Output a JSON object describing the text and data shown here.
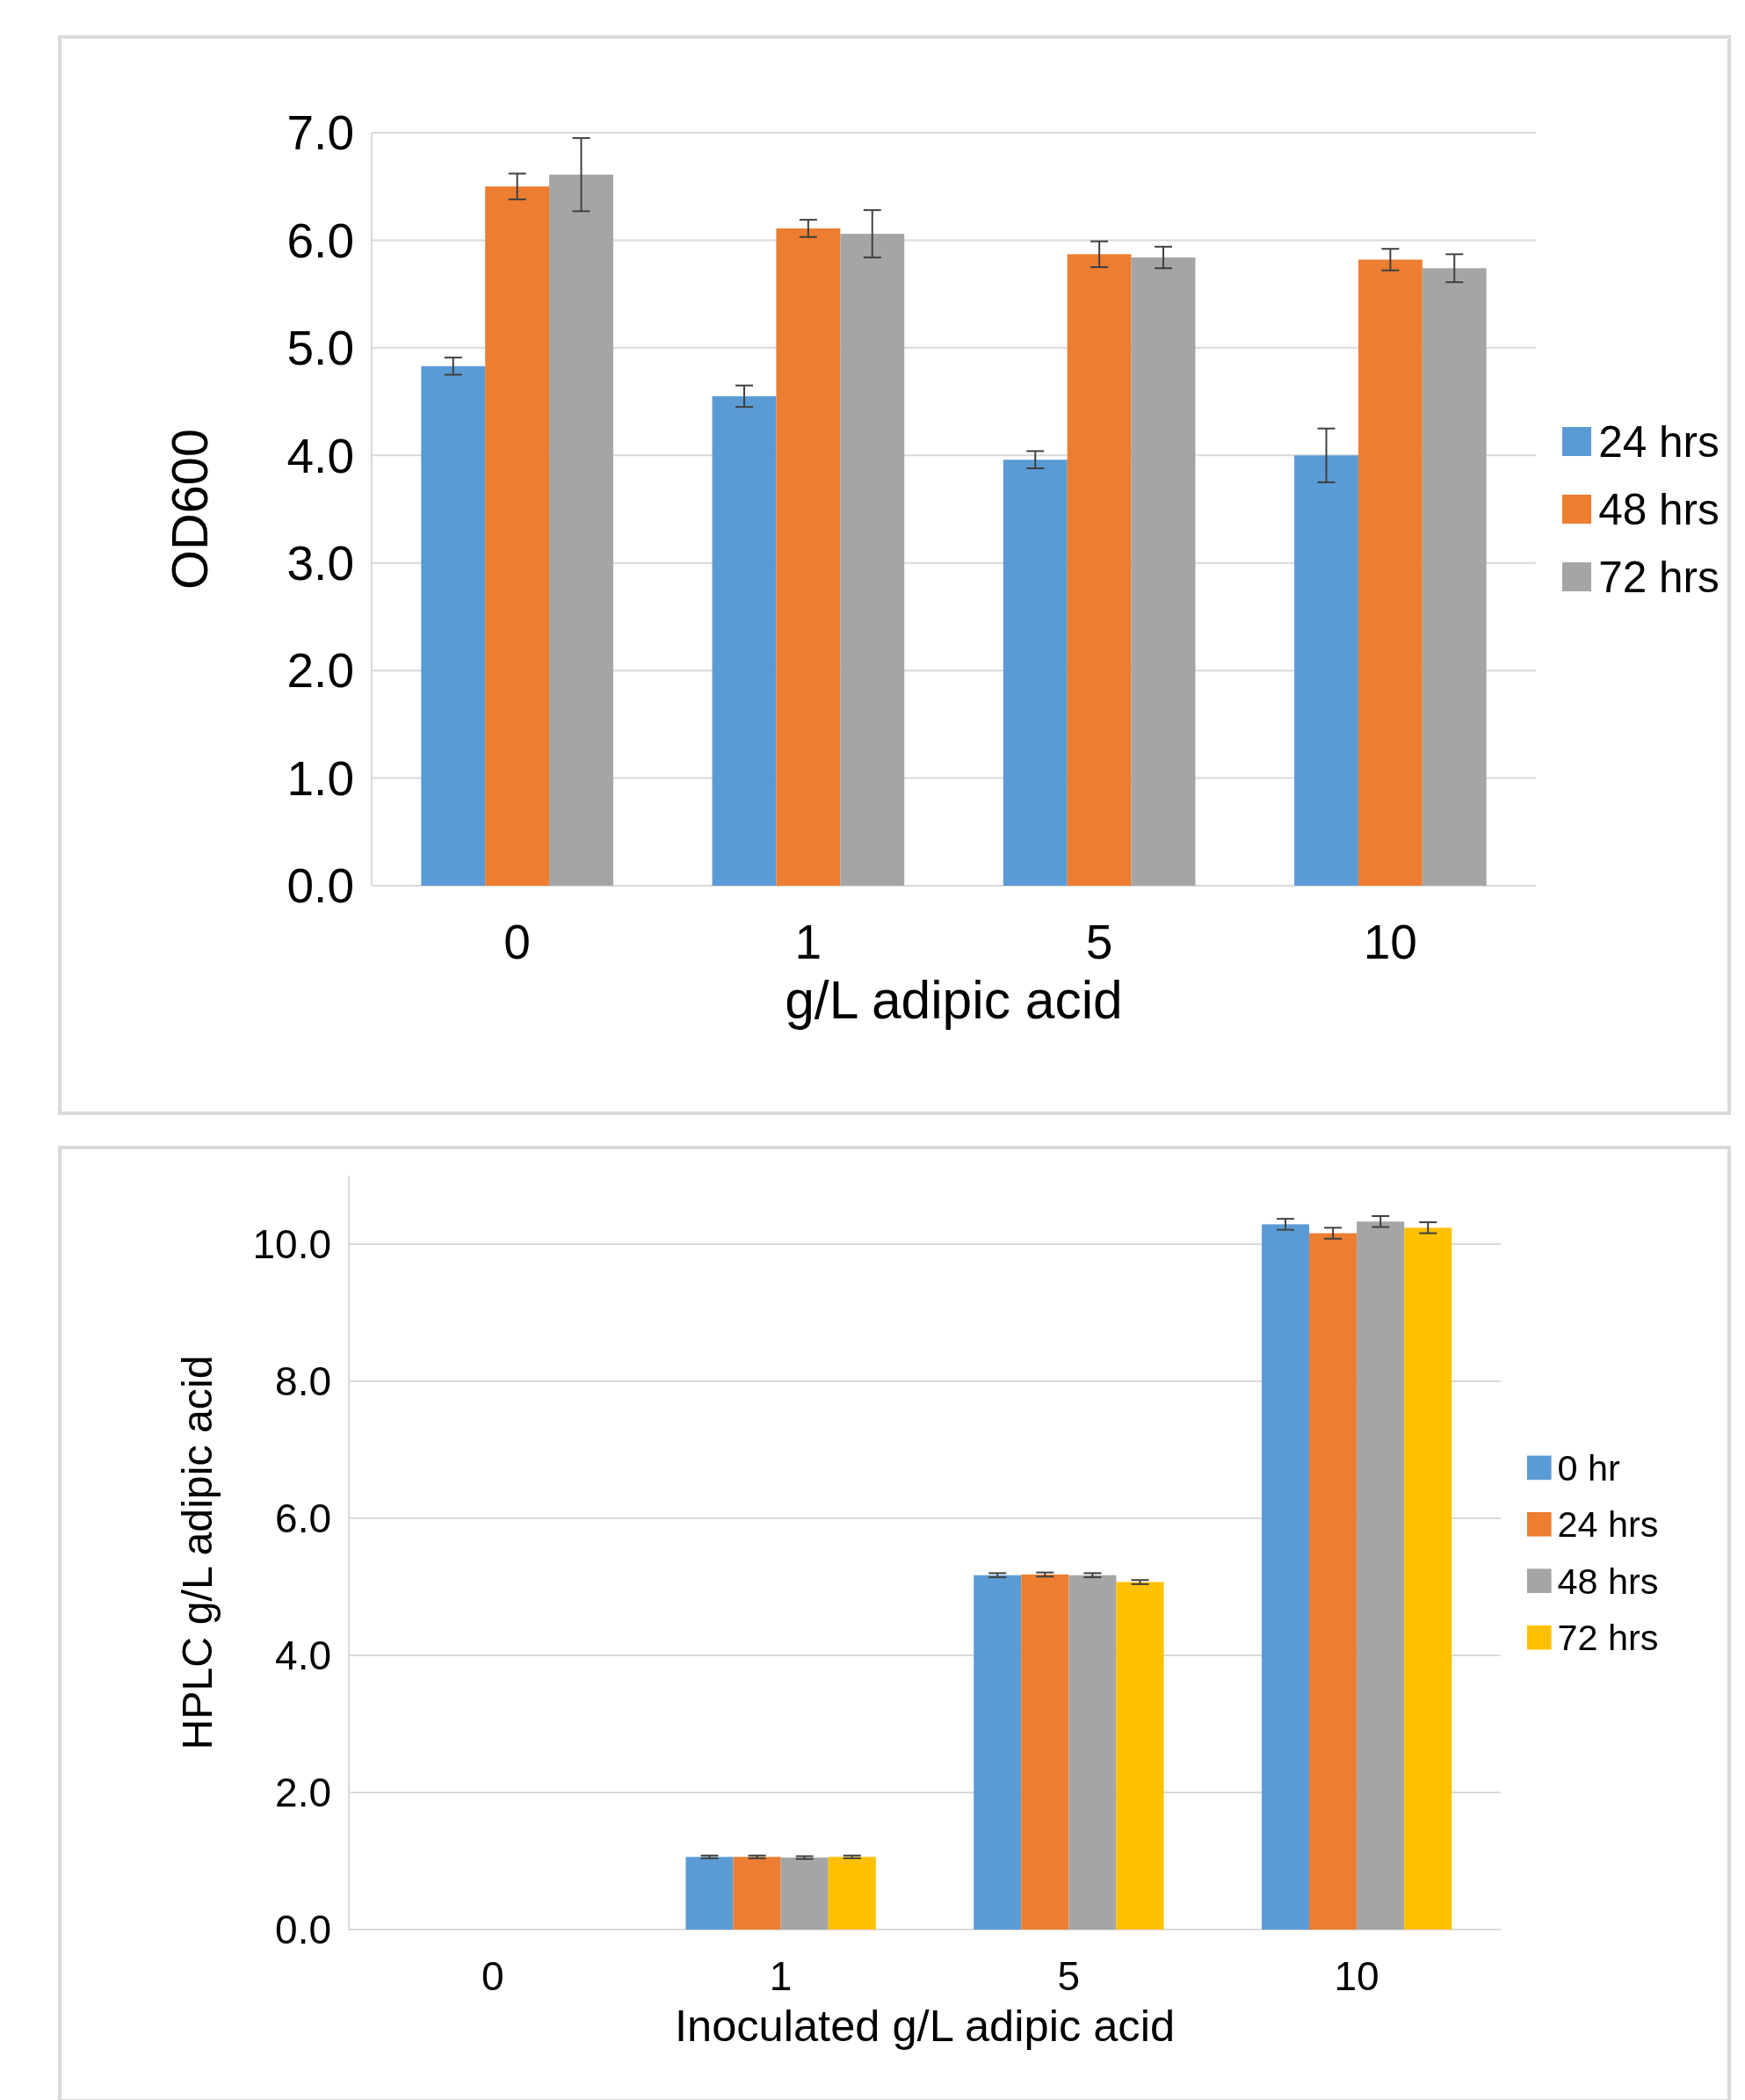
{
  "chart_data": [
    {
      "type": "bar",
      "xlabel": "g/L adipic acid",
      "ylabel": "OD600",
      "categories": [
        "0",
        "1",
        "5",
        "10"
      ],
      "ylim": [
        0,
        7
      ],
      "yticks": [
        {
          "value": 0,
          "label": "0.0"
        },
        {
          "value": 1,
          "label": "1.0"
        },
        {
          "value": 2,
          "label": "2.0"
        },
        {
          "value": 3,
          "label": "3.0"
        },
        {
          "value": 4,
          "label": "4.0"
        },
        {
          "value": 5,
          "label": "5.0"
        },
        {
          "value": 6,
          "label": "6.0"
        },
        {
          "value": 7,
          "label": "7.0"
        }
      ],
      "grid": "y",
      "legend": "right",
      "series": [
        {
          "name": "24 hrs",
          "color": "#5b9bd5",
          "values": [
            4.83,
            4.55,
            3.96,
            4.0
          ],
          "errors": [
            0.08,
            0.1,
            0.08,
            0.25
          ]
        },
        {
          "name": "48 hrs",
          "color": "#ed7d31",
          "values": [
            6.5,
            6.11,
            5.87,
            5.82
          ],
          "errors": [
            0.12,
            0.08,
            0.12,
            0.1
          ]
        },
        {
          "name": "72 hrs",
          "color": "#a5a5a5",
          "values": [
            6.61,
            6.06,
            5.84,
            5.74
          ],
          "errors": [
            0.34,
            0.22,
            0.1,
            0.13
          ]
        }
      ]
    },
    {
      "type": "bar",
      "xlabel": "Inoculated g/L adipic acid",
      "ylabel": "HPLC g/L adipic acid",
      "categories": [
        "0",
        "1",
        "5",
        "10"
      ],
      "ylim": [
        0,
        11
      ],
      "yticks": [
        {
          "value": 0,
          "label": "0.0"
        },
        {
          "value": 2,
          "label": "2.0"
        },
        {
          "value": 4,
          "label": "4.0"
        },
        {
          "value": 6,
          "label": "6.0"
        },
        {
          "value": 8,
          "label": "8.0"
        },
        {
          "value": 10,
          "label": "10.0"
        }
      ],
      "grid": "y",
      "legend": "right",
      "series": [
        {
          "name": "0 hr",
          "color": "#5b9bd5",
          "values": [
            0,
            1.06,
            5.17,
            10.29
          ],
          "errors": [
            null,
            0.02,
            0.03,
            0.08
          ]
        },
        {
          "name": "24 hrs",
          "color": "#ed7d31",
          "values": [
            0,
            1.06,
            5.18,
            10.16
          ],
          "errors": [
            null,
            0.02,
            0.03,
            0.08
          ]
        },
        {
          "name": "48 hrs",
          "color": "#a5a5a5",
          "values": [
            0,
            1.05,
            5.17,
            10.33
          ],
          "errors": [
            null,
            0.02,
            0.03,
            0.08
          ]
        },
        {
          "name": "72 hrs",
          "color": "#ffc000",
          "values": [
            0,
            1.06,
            5.07,
            10.24
          ],
          "errors": [
            null,
            0.02,
            0.03,
            0.08
          ]
        }
      ]
    }
  ]
}
